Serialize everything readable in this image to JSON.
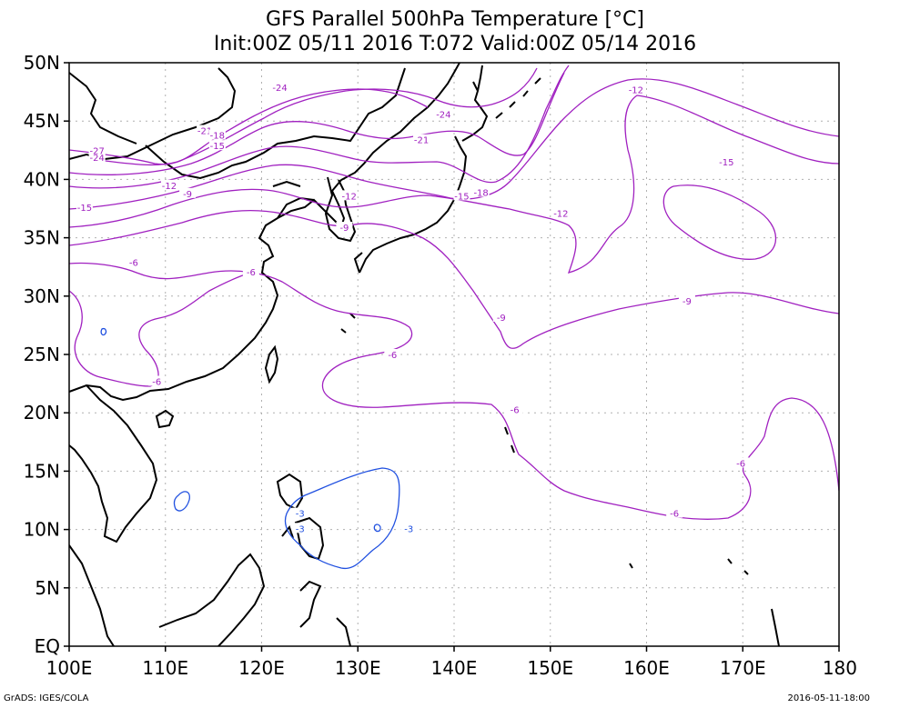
{
  "title": {
    "line1": "GFS Parallel 500hPa Temperature [°C]",
    "line2": "Init:00Z 05/11 2016 T:072 Valid:00Z 05/14 2016"
  },
  "axes": {
    "lat_labels": [
      "EQ",
      "5N",
      "10N",
      "15N",
      "20N",
      "25N",
      "30N",
      "35N",
      "40N",
      "45N",
      "50N"
    ],
    "lon_labels": [
      "100E",
      "110E",
      "120E",
      "130E",
      "140E",
      "150E",
      "160E",
      "170E",
      "180"
    ],
    "lat_range": [
      0,
      50
    ],
    "lon_range": [
      100,
      180
    ]
  },
  "contours": {
    "levels": [
      "-27",
      "-24",
      "-21",
      "-18",
      "-15",
      "-12",
      "-9",
      "-6",
      "-3"
    ],
    "cold_color": "#a020c0",
    "warm_color": "#2050e0",
    "labels": [
      {
        "text": "-24",
        "lon": 102.9,
        "lat": 41.9,
        "color": "purple"
      },
      {
        "text": "-27",
        "lon": 102.9,
        "lat": 42.5,
        "color": "purple"
      },
      {
        "text": "-21",
        "lon": 114.1,
        "lat": 44.2,
        "color": "purple"
      },
      {
        "text": "-18",
        "lon": 115.4,
        "lat": 43.8,
        "color": "purple"
      },
      {
        "text": "-15",
        "lon": 115.4,
        "lat": 42.9,
        "color": "purple"
      },
      {
        "text": "-24",
        "lon": 121.9,
        "lat": 47.9,
        "color": "purple"
      },
      {
        "text": "-24",
        "lon": 138.9,
        "lat": 45.6,
        "color": "purple"
      },
      {
        "text": "-21",
        "lon": 136.6,
        "lat": 43.4,
        "color": "purple"
      },
      {
        "text": "-12",
        "lon": 110.4,
        "lat": 39.5,
        "color": "purple"
      },
      {
        "text": "-9",
        "lon": 112.3,
        "lat": 38.8,
        "color": "purple"
      },
      {
        "text": "-15",
        "lon": 101.6,
        "lat": 37.6,
        "color": "purple"
      },
      {
        "text": "-12",
        "lon": 129.1,
        "lat": 38.6,
        "color": "purple"
      },
      {
        "text": "-15",
        "lon": 140.8,
        "lat": 38.6,
        "color": "purple"
      },
      {
        "text": "-18",
        "lon": 142.8,
        "lat": 38.9,
        "color": "purple"
      },
      {
        "text": "-9",
        "lon": 128.6,
        "lat": 35.9,
        "color": "purple"
      },
      {
        "text": "-12",
        "lon": 151.1,
        "lat": 37.1,
        "color": "purple"
      },
      {
        "text": "-12",
        "lon": 158.9,
        "lat": 47.7,
        "color": "purple"
      },
      {
        "text": "-15",
        "lon": 168.3,
        "lat": 41.5,
        "color": "purple"
      },
      {
        "text": "-6",
        "lon": 106.7,
        "lat": 32.9,
        "color": "purple"
      },
      {
        "text": "-6",
        "lon": 118.9,
        "lat": 32.1,
        "color": "purple"
      },
      {
        "text": "-9",
        "lon": 164.2,
        "lat": 29.6,
        "color": "purple"
      },
      {
        "text": "-9",
        "lon": 144.9,
        "lat": 28.2,
        "color": "purple"
      },
      {
        "text": "-6",
        "lon": 133.6,
        "lat": 25.0,
        "color": "purple"
      },
      {
        "text": "-6",
        "lon": 109.1,
        "lat": 22.7,
        "color": "purple"
      },
      {
        "text": "-6",
        "lon": 146.3,
        "lat": 20.3,
        "color": "purple"
      },
      {
        "text": "-6",
        "lon": 169.8,
        "lat": 15.7,
        "color": "purple"
      },
      {
        "text": "-6",
        "lon": 162.9,
        "lat": 11.4,
        "color": "purple"
      },
      {
        "text": "-3",
        "lon": 135.3,
        "lat": 10.1,
        "color": "blue"
      },
      {
        "text": "-3",
        "lon": 124.0,
        "lat": 11.4,
        "color": "blue"
      },
      {
        "text": "-3",
        "lon": 124.0,
        "lat": 10.1,
        "color": "blue"
      }
    ]
  },
  "footer": {
    "left": "GrADS: IGES/COLA",
    "right": "2016-05-11-18:00"
  },
  "colors": {
    "coast": "#000000",
    "grid": "#b0b0b0",
    "frame": "#000000"
  }
}
